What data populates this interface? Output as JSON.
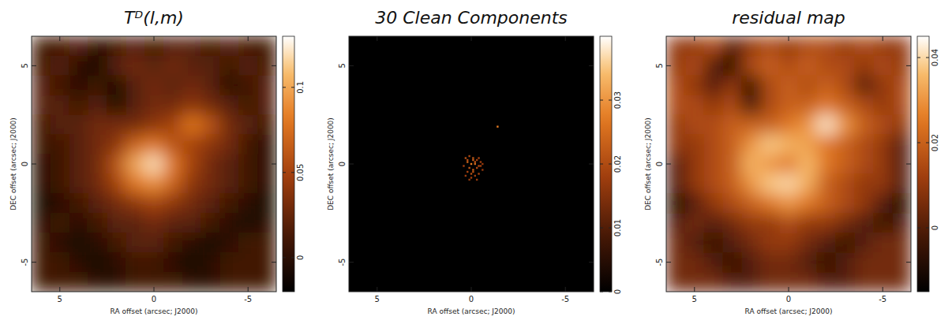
{
  "chart_data": [
    {
      "type": "heatmap",
      "title": "Tᴰ(l,m)",
      "xlabel": "RA offset (arcsec; J2000)",
      "ylabel": "DEC offset (arcsec; J2000)",
      "x": [
        6,
        5,
        4,
        3,
        2,
        1,
        0,
        -1,
        -2,
        -3,
        -4,
        -5,
        -6
      ],
      "y": [
        6,
        5,
        4,
        3,
        2,
        1,
        0,
        -1,
        -2,
        -3,
        -4,
        -5,
        -6
      ],
      "xlim": [
        6.5,
        -6.5
      ],
      "ylim": [
        -6.5,
        6.5
      ],
      "xticks": [
        5,
        0,
        -5
      ],
      "yticks": [
        -5,
        0,
        5
      ],
      "cells": [
        [
          0.01,
          0.01,
          0.02,
          0.0,
          0.01,
          0.02,
          0.01,
          0.02,
          0.02,
          0.01,
          0.02,
          0.01,
          0.01
        ],
        [
          0.01,
          0.02,
          0.0,
          -0.01,
          0.02,
          0.03,
          0.02,
          0.03,
          0.02,
          0.02,
          0.01,
          0.02,
          0.01
        ],
        [
          0.02,
          0.01,
          0.0,
          0.01,
          -0.01,
          0.02,
          0.03,
          0.02,
          0.03,
          0.02,
          0.0,
          0.01,
          0.02
        ],
        [
          0.02,
          0.02,
          0.01,
          0.02,
          -0.01,
          0.02,
          0.03,
          0.03,
          0.04,
          0.03,
          0.02,
          0.01,
          0.02
        ],
        [
          0.01,
          0.02,
          0.02,
          0.03,
          0.03,
          0.03,
          0.04,
          0.05,
          0.08,
          0.06,
          0.03,
          0.02,
          0.01
        ],
        [
          0.01,
          0.01,
          0.02,
          0.03,
          0.04,
          0.07,
          0.08,
          0.06,
          0.05,
          0.04,
          0.03,
          0.01,
          0.0
        ],
        [
          0.0,
          0.01,
          0.02,
          0.03,
          0.06,
          0.1,
          0.12,
          0.08,
          0.05,
          0.03,
          0.02,
          0.01,
          0.0
        ],
        [
          0.0,
          0.01,
          0.02,
          0.03,
          0.05,
          0.08,
          0.09,
          0.07,
          0.04,
          0.03,
          0.02,
          0.01,
          0.0
        ],
        [
          -0.01,
          0.0,
          0.01,
          0.02,
          0.03,
          0.04,
          0.05,
          0.04,
          0.03,
          0.02,
          0.01,
          0.0,
          -0.01
        ],
        [
          0.0,
          0.01,
          0.0,
          0.01,
          0.02,
          0.02,
          0.03,
          0.02,
          0.02,
          0.01,
          0.0,
          -0.01,
          0.0
        ],
        [
          0.01,
          0.0,
          -0.01,
          0.0,
          0.01,
          0.02,
          0.02,
          0.01,
          0.0,
          -0.01,
          0.0,
          0.01,
          0.01
        ],
        [
          0.01,
          0.01,
          0.0,
          -0.01,
          0.0,
          0.01,
          0.01,
          0.0,
          -0.01,
          0.0,
          0.01,
          0.01,
          0.01
        ],
        [
          0.01,
          0.01,
          0.01,
          0.0,
          0.0,
          0.01,
          0.01,
          0.01,
          0.0,
          0.0,
          0.01,
          0.01,
          0.01
        ]
      ],
      "color_range": [
        -0.02,
        0.13
      ],
      "color_ticks": [
        0,
        0.05,
        0.1
      ]
    },
    {
      "type": "scatter",
      "title": "30 Clean Components",
      "xlabel": "RA offset (arcsec; J2000)",
      "ylabel": "DEC offset (arcsec; J2000)",
      "x": [
        0.3,
        0.1,
        -0.1,
        -0.3,
        -0.5,
        0.2,
        0.0,
        -0.2,
        -0.4,
        0.4,
        0.1,
        -0.1,
        -0.3,
        -0.6,
        0.2,
        0.0,
        -0.2,
        -0.4,
        0.3,
        -0.1,
        -0.5,
        0.1,
        -0.3,
        0.0,
        -0.2,
        0.2,
        -0.4,
        -0.1,
        -0.6,
        -1.4
      ],
      "y": [
        0.3,
        0.4,
        0.3,
        0.2,
        0.1,
        0.1,
        0.0,
        0.1,
        -0.1,
        -0.1,
        -0.2,
        -0.3,
        -0.2,
        -0.3,
        -0.4,
        -0.5,
        -0.6,
        -0.5,
        -0.6,
        0.2,
        -0.1,
        -0.8,
        -0.8,
        -0.7,
        0.0,
        0.2,
        0.3,
        -0.4,
        0.0,
        1.9
      ],
      "values": [
        0.01,
        0.008,
        0.012,
        0.006,
        0.005,
        0.015,
        0.02,
        0.012,
        0.009,
        0.006,
        0.011,
        0.014,
        0.008,
        0.004,
        0.007,
        0.01,
        0.006,
        0.007,
        0.005,
        0.013,
        0.006,
        0.004,
        0.005,
        0.006,
        0.016,
        0.009,
        0.007,
        0.01,
        0.004,
        0.02
      ],
      "xlim": [
        6.5,
        -6.5
      ],
      "ylim": [
        -6.5,
        6.5
      ],
      "xticks": [
        5,
        0,
        -5
      ],
      "yticks": [
        -5,
        0,
        5
      ],
      "color_range": [
        0,
        0.04
      ],
      "color_ticks": [
        0,
        0.01,
        0.02,
        0.03
      ]
    },
    {
      "type": "heatmap",
      "title": "residual map",
      "xlabel": "RA offset (arcsec; J2000)",
      "ylabel": "DEC offset (arcsec; J2000)",
      "x": [
        6,
        5,
        4,
        3,
        2,
        1,
        0,
        -1,
        -2,
        -3,
        -4,
        -5,
        -6
      ],
      "y": [
        6,
        5,
        4,
        3,
        2,
        1,
        0,
        -1,
        -2,
        -3,
        -4,
        -5,
        -6
      ],
      "xlim": [
        6.5,
        -6.5
      ],
      "ylim": [
        -6.5,
        6.5
      ],
      "xticks": [
        5,
        0,
        -5
      ],
      "yticks": [
        -5,
        0,
        5
      ],
      "cells": [
        [
          0.01,
          0.01,
          0.015,
          0.0,
          0.01,
          0.015,
          0.01,
          0.015,
          0.015,
          0.01,
          0.015,
          0.01,
          0.01
        ],
        [
          0.01,
          0.015,
          0.0,
          -0.01,
          0.015,
          0.02,
          0.015,
          0.02,
          0.015,
          0.015,
          0.01,
          0.015,
          0.01
        ],
        [
          0.015,
          0.01,
          0.0,
          0.01,
          -0.01,
          0.015,
          0.02,
          0.015,
          0.02,
          0.015,
          0.0,
          0.01,
          0.015
        ],
        [
          0.015,
          0.015,
          0.01,
          0.015,
          -0.005,
          0.015,
          0.02,
          0.02,
          0.025,
          0.02,
          0.015,
          0.01,
          0.015
        ],
        [
          0.01,
          0.015,
          0.015,
          0.02,
          0.02,
          0.02,
          0.025,
          0.03,
          0.042,
          0.03,
          0.02,
          0.015,
          0.01
        ],
        [
          0.01,
          0.01,
          0.015,
          0.02,
          0.03,
          0.038,
          0.035,
          0.032,
          0.025,
          0.02,
          0.015,
          0.01,
          0.0
        ],
        [
          0.0,
          0.01,
          0.015,
          0.02,
          0.035,
          0.03,
          0.025,
          0.036,
          0.025,
          0.02,
          0.015,
          0.01,
          0.0
        ],
        [
          0.0,
          0.01,
          0.015,
          0.02,
          0.03,
          0.038,
          0.04,
          0.034,
          0.02,
          0.015,
          0.01,
          0.01,
          0.0
        ],
        [
          -0.01,
          0.0,
          0.01,
          0.015,
          0.02,
          0.025,
          0.03,
          0.025,
          0.02,
          0.015,
          0.01,
          0.0,
          -0.01
        ],
        [
          0.0,
          0.005,
          0.0,
          0.005,
          0.01,
          0.01,
          0.015,
          0.01,
          0.01,
          0.005,
          0.0,
          -0.005,
          0.0
        ],
        [
          0.005,
          0.0,
          -0.005,
          0.0,
          0.005,
          0.01,
          0.01,
          0.005,
          0.0,
          -0.005,
          0.0,
          0.005,
          0.005
        ],
        [
          0.005,
          0.005,
          0.0,
          -0.005,
          0.0,
          0.005,
          0.005,
          0.0,
          -0.005,
          0.0,
          0.005,
          0.005,
          0.005
        ],
        [
          0.005,
          0.005,
          0.005,
          0.0,
          0.0,
          0.005,
          0.005,
          0.005,
          0.0,
          0.0,
          0.005,
          0.005,
          0.005
        ]
      ],
      "color_range": [
        -0.015,
        0.045
      ],
      "color_ticks": [
        0,
        0.02,
        0.04
      ]
    }
  ]
}
